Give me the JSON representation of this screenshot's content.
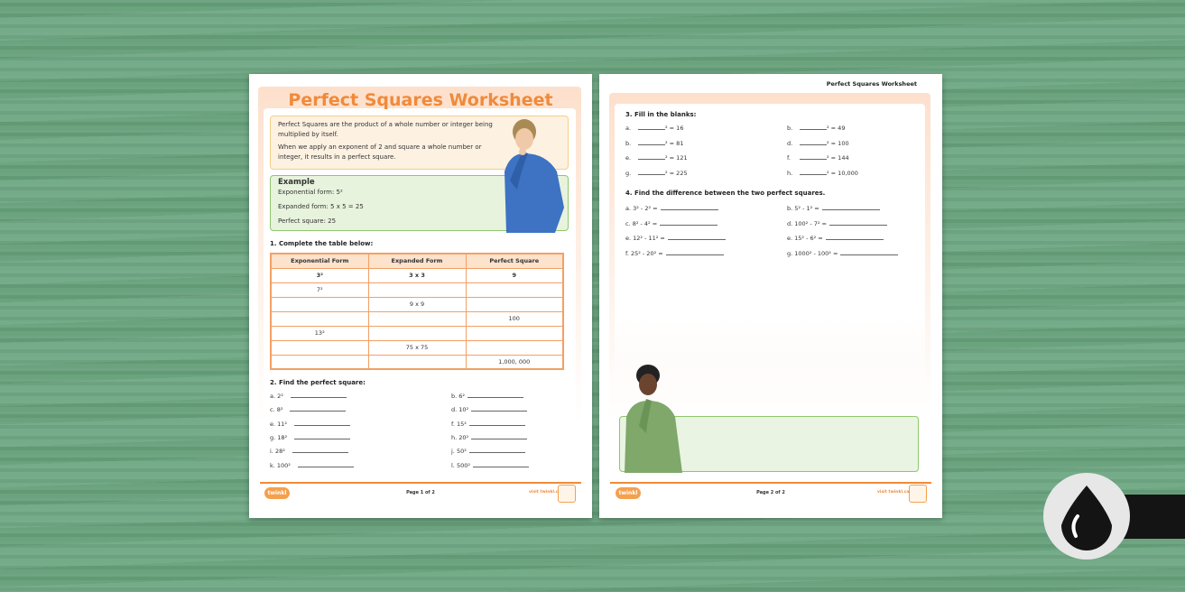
{
  "page1": {
    "title": "Perfect Squares Worksheet",
    "intro": [
      "Perfect Squares are the product of a whole number or integer being multiplied by itself.",
      "When we apply an exponent of 2 and square a whole number or integer, it results in a perfect square."
    ],
    "example": {
      "heading": "Example",
      "lines": [
        "Exponential form: 5²",
        "Expanded form: 5 x 5 = 25",
        "Perfect square: 25"
      ]
    },
    "q1": "1. Complete the table below:",
    "table": {
      "headers": [
        "Exponential Form",
        "Expanded Form",
        "Perfect Square"
      ],
      "rows": [
        [
          "3²",
          "3 x 3",
          "9"
        ],
        [
          "7²",
          "",
          ""
        ],
        [
          "",
          "9 x 9",
          ""
        ],
        [
          "",
          "",
          "100"
        ],
        [
          "13²",
          "",
          ""
        ],
        [
          "",
          "75 x 75",
          ""
        ],
        [
          "",
          "",
          "1,000, 000"
        ]
      ]
    },
    "q2": "2. Find the perfect square:",
    "q2_items": [
      "a. 2²",
      "b. 6²",
      "c. 8²",
      "d. 10²",
      "e. 11²",
      "f. 15²",
      "g. 18²",
      "h. 20²",
      "i. 28²",
      "j. 50²",
      "k. 100²",
      "l. 500²"
    ],
    "footer": {
      "logo": "twinkl",
      "page": "Page 1 of 2",
      "site": "visit twinkl.ca"
    }
  },
  "page2": {
    "header": "Perfect Squares Worksheet",
    "q3": "3. Fill in the blanks:",
    "q3_items": [
      [
        "a.",
        "² = 16"
      ],
      [
        "b.",
        "² = 49"
      ],
      [
        "b.",
        "² = 81"
      ],
      [
        "d.",
        "² = 100"
      ],
      [
        "e.",
        "² =    121"
      ],
      [
        "f.",
        "² = 144"
      ],
      [
        "g.",
        "² = 225"
      ],
      [
        "h.",
        "² = 10,000"
      ]
    ],
    "q4": "4. Find the difference between the two perfect squares.",
    "q4_items": [
      "a. 3² - 2² =",
      "b. 5² - 1² =",
      "c. 8² - 4² =",
      "d. 100² - 7² =",
      "e. 12² - 11² =",
      "e. 15² - 6² =",
      "f. 25² - 20² =",
      "g. 1000² - 100² ="
    ],
    "footer": {
      "logo": "twinkl",
      "page": "Page 2 of 2",
      "site": "visit twinkl.ca"
    }
  },
  "colors": {
    "accent": "#f08a3a",
    "example_border": "#8fc66d",
    "intro_border": "#f5cf85",
    "background": "#6aa57f"
  },
  "icons": {
    "watermark": "ink-drop-icon"
  }
}
